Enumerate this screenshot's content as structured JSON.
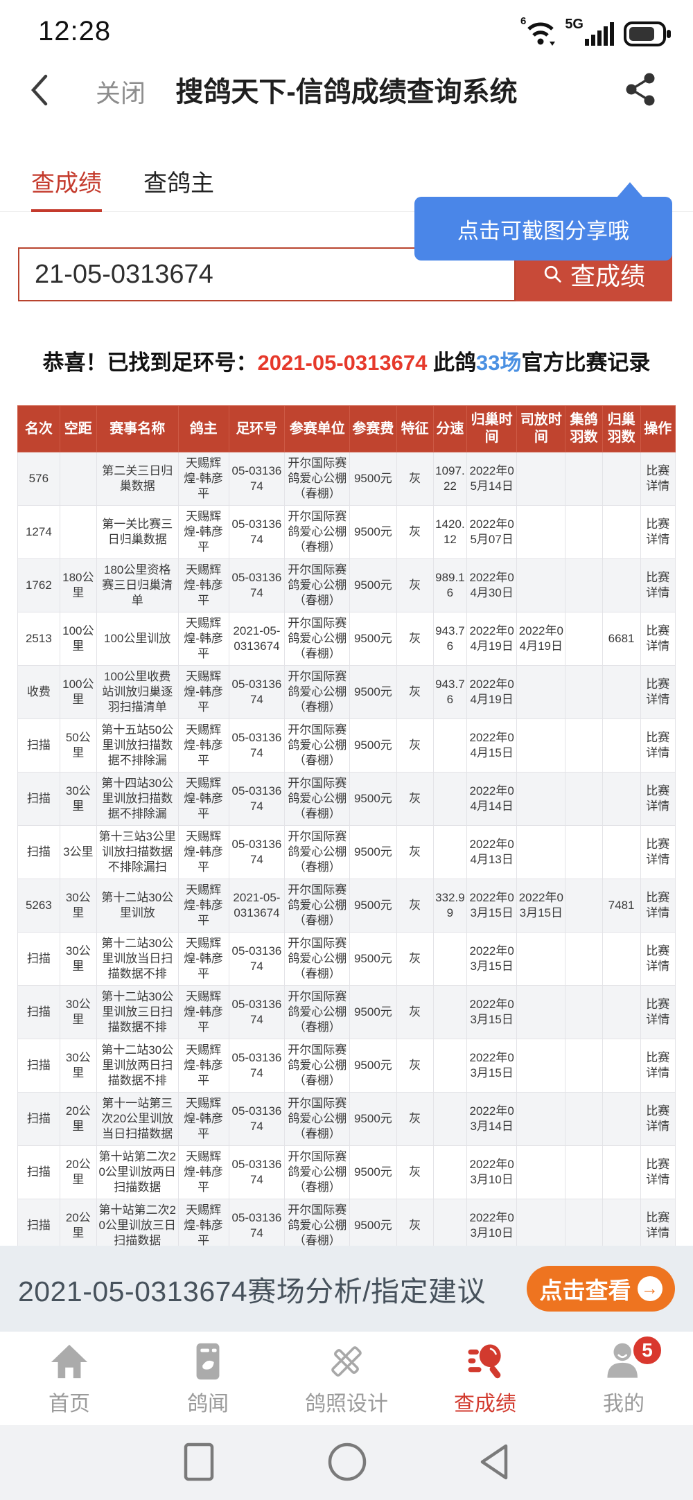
{
  "status_bar": {
    "time": "12:28",
    "wifi_label": "6",
    "network_label": "5G"
  },
  "header": {
    "close_label": "关闭",
    "title": "搜鸽天下-信鸽成绩查询系统"
  },
  "tabs": [
    {
      "label": "查成绩",
      "active": true
    },
    {
      "label": "查鸽主",
      "active": false
    }
  ],
  "tooltip": {
    "text": "点击可截图分享哦"
  },
  "search": {
    "value": "21-05-0313674",
    "button_label": "查成绩"
  },
  "result": {
    "prefix": "恭喜！已找到足环号：",
    "ring": "2021-05-0313674",
    "mid": " 此鸽",
    "count": "33场",
    "suffix": "官方比赛记录"
  },
  "table": {
    "headers": [
      "名次",
      "空距",
      "赛事名称",
      "鸽主",
      "足环号",
      "参赛单位",
      "参赛费",
      "特征",
      "分速",
      "归巢时间",
      "司放时间",
      "集鸽羽数",
      "归巢羽数",
      "操作"
    ],
    "rows": [
      {
        "cells": [
          "576",
          "",
          "第二关三日归巢数据",
          "天赐辉煌-韩彦平",
          "05-0313674",
          "开尔国际赛鸽爱心公棚（春棚）",
          "9500元",
          "灰",
          "1097.22",
          "2022年05月14日",
          "",
          "",
          "",
          "比赛详情"
        ]
      },
      {
        "cells": [
          "1274",
          "",
          "第一关比赛三日归巢数据",
          "天赐辉煌-韩彦平",
          "05-0313674",
          "开尔国际赛鸽爱心公棚（春棚）",
          "9500元",
          "灰",
          "1420.12",
          "2022年05月07日",
          "",
          "",
          "",
          "比赛详情"
        ]
      },
      {
        "cells": [
          "1762",
          "180公里",
          "180公里资格赛三日归巢清单",
          "天赐辉煌-韩彦平",
          "05-0313674",
          "开尔国际赛鸽爱心公棚（春棚）",
          "9500元",
          "灰",
          "989.16",
          "2022年04月30日",
          "",
          "",
          "",
          "比赛详情"
        ]
      },
      {
        "cells": [
          "2513",
          "100公里",
          "100公里训放",
          "天赐辉煌-韩彦平",
          "2021-05-0313674",
          "开尔国际赛鸽爱心公棚（春棚）",
          "9500元",
          "灰",
          "943.76",
          "2022年04月19日",
          "2022年04月19日",
          "",
          "6681",
          "比赛详情"
        ]
      },
      {
        "cells": [
          "收费",
          "100公里",
          "100公里收费站训放归巢逐羽扫描清单",
          "天赐辉煌-韩彦平",
          "05-0313674",
          "开尔国际赛鸽爱心公棚（春棚）",
          "9500元",
          "灰",
          "943.76",
          "2022年04月19日",
          "",
          "",
          "",
          "比赛详情"
        ]
      },
      {
        "cells": [
          "扫描",
          "50公里",
          "第十五站50公里训放扫描数据不排除漏",
          "天赐辉煌-韩彦平",
          "05-0313674",
          "开尔国际赛鸽爱心公棚（春棚）",
          "9500元",
          "灰",
          "",
          "2022年04月15日",
          "",
          "",
          "",
          "比赛详情"
        ]
      },
      {
        "cells": [
          "扫描",
          "30公里",
          "第十四站30公里训放扫描数据不排除漏",
          "天赐辉煌-韩彦平",
          "05-0313674",
          "开尔国际赛鸽爱心公棚（春棚）",
          "9500元",
          "灰",
          "",
          "2022年04月14日",
          "",
          "",
          "",
          "比赛详情"
        ]
      },
      {
        "cells": [
          "扫描",
          "3公里",
          "第十三站3公里训放扫描数据不排除漏扫",
          "天赐辉煌-韩彦平",
          "05-0313674",
          "开尔国际赛鸽爱心公棚（春棚）",
          "9500元",
          "灰",
          "",
          "2022年04月13日",
          "",
          "",
          "",
          "比赛详情"
        ]
      },
      {
        "cells": [
          "5263",
          "30公里",
          "第十二站30公里训放",
          "天赐辉煌-韩彦平",
          "2021-05-0313674",
          "开尔国际赛鸽爱心公棚（春棚）",
          "9500元",
          "灰",
          "332.99",
          "2022年03月15日",
          "2022年03月15日",
          "",
          "7481",
          "比赛详情"
        ]
      },
      {
        "cells": [
          "扫描",
          "30公里",
          "第十二站30公里训放当日扫描数据不排",
          "天赐辉煌-韩彦平",
          "05-0313674",
          "开尔国际赛鸽爱心公棚（春棚）",
          "9500元",
          "灰",
          "",
          "2022年03月15日",
          "",
          "",
          "",
          "比赛详情"
        ]
      },
      {
        "cells": [
          "扫描",
          "30公里",
          "第十二站30公里训放三日扫描数据不排",
          "天赐辉煌-韩彦平",
          "05-0313674",
          "开尔国际赛鸽爱心公棚（春棚）",
          "9500元",
          "灰",
          "",
          "2022年03月15日",
          "",
          "",
          "",
          "比赛详情"
        ]
      },
      {
        "cells": [
          "扫描",
          "30公里",
          "第十二站30公里训放两日扫描数据不排",
          "天赐辉煌-韩彦平",
          "05-0313674",
          "开尔国际赛鸽爱心公棚（春棚）",
          "9500元",
          "灰",
          "",
          "2022年03月15日",
          "",
          "",
          "",
          "比赛详情"
        ]
      },
      {
        "cells": [
          "扫描",
          "20公里",
          "第十一站第三次20公里训放当日扫描数据",
          "天赐辉煌-韩彦平",
          "05-0313674",
          "开尔国际赛鸽爱心公棚（春棚）",
          "9500元",
          "灰",
          "",
          "2022年03月14日",
          "",
          "",
          "",
          "比赛详情"
        ]
      },
      {
        "cells": [
          "扫描",
          "20公里",
          "第十站第二次20公里训放两日扫描数据",
          "天赐辉煌-韩彦平",
          "05-0313674",
          "开尔国际赛鸽爱心公棚（春棚）",
          "9500元",
          "灰",
          "",
          "2022年03月10日",
          "",
          "",
          "",
          "比赛详情"
        ]
      },
      {
        "cells": [
          "扫描",
          "20公里",
          "第十站第二次20公里训放三日扫描数据",
          "天赐辉煌-韩彦平",
          "05-0313674",
          "开尔国际赛鸽爱心公棚（春棚）",
          "9500元",
          "灰",
          "",
          "2022年03月10日",
          "",
          "",
          "",
          "比赛详情"
        ]
      }
    ]
  },
  "banner": {
    "text": "2021-05-0313674赛场分析/指定建议",
    "button_label": "点击查看",
    "arrow": "→"
  },
  "bottom_nav": {
    "items": [
      {
        "label": "首页",
        "active": false
      },
      {
        "label": "鸽闻",
        "active": false
      },
      {
        "label": "鸽照设计",
        "active": false
      },
      {
        "label": "查成绩",
        "active": true
      },
      {
        "label": "我的",
        "active": false,
        "badge": "5"
      }
    ]
  },
  "colors": {
    "table_header_red": "#c0442f",
    "button_red": "#c84a38",
    "highlight_red": "#e6392b",
    "tab_red": "#c43a2c",
    "link_blue": "#4a90e2",
    "tooltip_blue": "#4a86e8",
    "banner_orange": "#ee7420",
    "badge_red": "#d9382e"
  }
}
